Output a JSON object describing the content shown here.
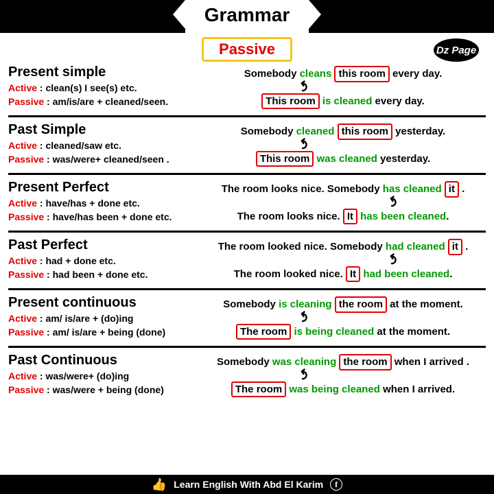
{
  "header": {
    "title": "Grammar",
    "subtitle": "Passive",
    "badge": "Dz Page"
  },
  "sections": [
    {
      "title": "Present simple",
      "active": "clean(s) I see(s) etc.",
      "passive": "am/is/are + cleaned/seen.",
      "ex1": {
        "pre": "Somebody ",
        "verb": "cleans",
        "obj": "this room",
        "post": " every day."
      },
      "ex2": {
        "obj": "This room",
        "verb": "is cleaned",
        "post": " every day."
      }
    },
    {
      "title": "Past Simple",
      "active": "cleaned/saw etc.",
      "passive": "was/were+ cleaned/seen .",
      "ex1": {
        "pre": "Somebody ",
        "verb": "cleaned",
        "obj": "this room",
        "post": " yesterday."
      },
      "ex2": {
        "obj": "This room",
        "verb": "was cleaned",
        "post": " yesterday."
      }
    },
    {
      "title": "Present Perfect",
      "active": "have/has + done etc.",
      "passive": "have/has been + done etc.",
      "ex1": {
        "pre": "The room looks nice. Somebody ",
        "verb": "has cleaned",
        "obj": "it",
        "post": " ."
      },
      "ex2": {
        "pre": "The room looks nice. ",
        "obj": "It",
        "verb": "has been cleaned",
        "post": "."
      }
    },
    {
      "title": "Past Perfect",
      "active": "had + done etc.",
      "passive": "had been + done etc.",
      "ex1": {
        "pre": "The room looked nice. Somebody ",
        "verb": "had cleaned",
        "obj": "it",
        "post": " ."
      },
      "ex2": {
        "pre": "The room looked nice. ",
        "obj": "It",
        "verb": "had been cleaned",
        "post": "."
      }
    },
    {
      "title": "Present continuous",
      "active": "am/ is/are + (do)ing",
      "passive": "am/ is/are + being (done)",
      "ex1": {
        "pre": "Somebody ",
        "verb": "is cleaning",
        "obj": "the room",
        "post": " at the moment."
      },
      "ex2": {
        "obj": "The room",
        "verb": "is being cleaned",
        "post": " at the moment."
      }
    },
    {
      "title": "Past Continuous",
      "active": "was/were+ (do)ing",
      "passive": "was/were + being (done)",
      "ex1": {
        "pre": "Somebody ",
        "verb": "was cleaning",
        "obj": "the room",
        "post": " when I arrived ."
      },
      "ex2": {
        "obj": "The room",
        "verb": "was being cleaned",
        "post": " when I arrived."
      }
    }
  ],
  "labels": {
    "active": "Active",
    "passive": "Passive"
  },
  "footer": {
    "text": "Learn English With Abd El Karim"
  }
}
